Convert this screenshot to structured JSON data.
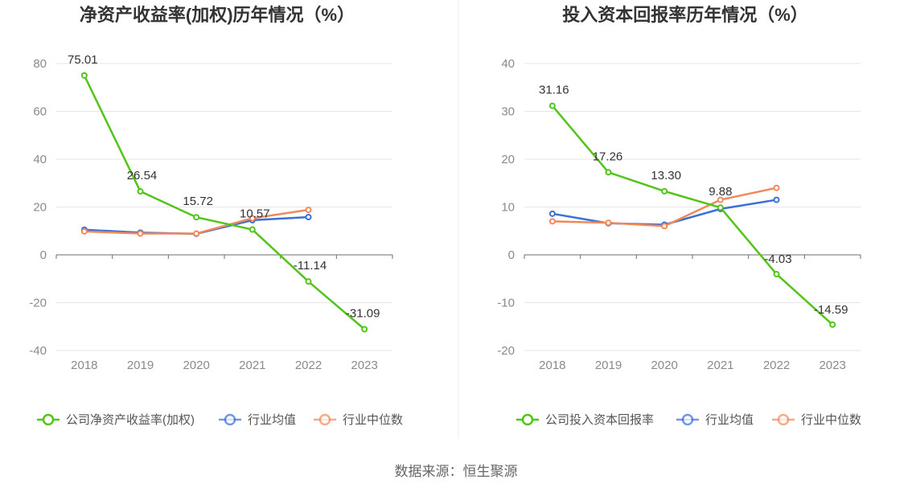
{
  "source": "数据来源：恒生聚源",
  "colors": {
    "company": "#52c41a",
    "avg": "#3a6fd6",
    "median": "#f0895a"
  },
  "chart_data": [
    {
      "type": "line",
      "title": "净资产收益率(加权)历年情况（%）",
      "categories": [
        "2018",
        "2019",
        "2020",
        "2021",
        "2022",
        "2023"
      ],
      "ylim": [
        -40,
        80
      ],
      "yticks": [
        "80",
        "60",
        "40",
        "20",
        "0",
        "-20",
        "-40"
      ],
      "grid": true,
      "legend_position": "bottom",
      "series": [
        {
          "name": "公司净资产收益率(加权)",
          "values": [
            75.01,
            26.54,
            15.72,
            10.57,
            -11.14,
            -31.09
          ],
          "labels": [
            "75.01",
            "26.54",
            "15.72",
            "10.57",
            "-11.14",
            "-31.09"
          ]
        },
        {
          "name": "行业均值",
          "values": [
            10.5,
            9.3,
            8.8,
            14.5,
            15.8,
            null
          ]
        },
        {
          "name": "行业中位数",
          "values": [
            9.8,
            8.9,
            8.9,
            15.3,
            18.8,
            null
          ]
        }
      ]
    },
    {
      "type": "line",
      "title": "投入资本回报率历年情况（%）",
      "categories": [
        "2018",
        "2019",
        "2020",
        "2021",
        "2022",
        "2023"
      ],
      "ylim": [
        -20,
        40
      ],
      "yticks": [
        "40",
        "30",
        "20",
        "10",
        "0",
        "-10",
        "-20"
      ],
      "grid": true,
      "legend_position": "bottom",
      "series": [
        {
          "name": "公司投入资本回报率",
          "values": [
            31.16,
            17.26,
            13.3,
            9.88,
            -4.03,
            -14.59
          ],
          "labels": [
            "31.16",
            "17.26",
            "13.30",
            "9.88",
            "-4.03",
            "-14.59"
          ]
        },
        {
          "name": "行业均值",
          "values": [
            8.6,
            6.6,
            6.3,
            9.6,
            11.5,
            null
          ]
        },
        {
          "name": "行业中位数",
          "values": [
            7.0,
            6.7,
            6.0,
            11.5,
            14.0,
            null
          ]
        }
      ]
    }
  ]
}
